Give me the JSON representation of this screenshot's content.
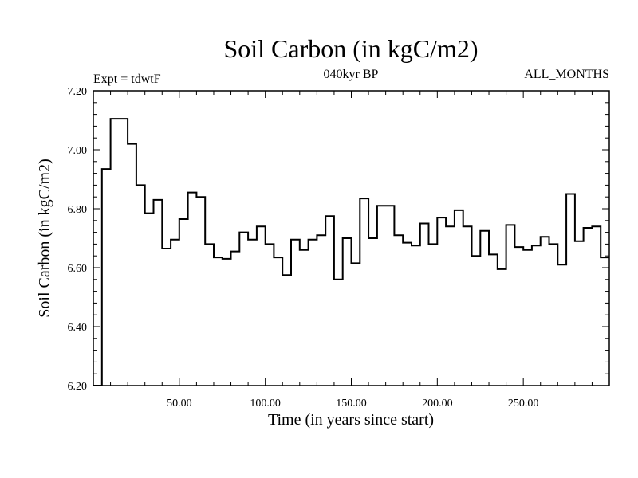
{
  "chart_data": {
    "type": "line",
    "step": true,
    "title": "Soil Carbon (in kgC/m2)",
    "subtitle": "040kyr BP",
    "left_note": "Expt = tdwtF",
    "right_note": "ALL_MONTHS",
    "xlabel": "Time (in years since start)",
    "ylabel": "Soil Carbon (in kgC/m2)",
    "xlim": [
      0,
      300
    ],
    "ylim": [
      6.2,
      7.2
    ],
    "xticks": [
      50,
      100,
      150,
      200,
      250
    ],
    "xtick_labels": [
      "50.00",
      "100.00",
      "150.00",
      "200.00",
      "250.00"
    ],
    "yticks": [
      6.2,
      6.4,
      6.6,
      6.8,
      7.0,
      7.2
    ],
    "ytick_labels": [
      "6.20",
      "6.40",
      "6.60",
      "6.80",
      "7.00",
      "7.20"
    ],
    "x": [
      0,
      5,
      10,
      20,
      25,
      30,
      35,
      40,
      45,
      50,
      55,
      60,
      65,
      70,
      75,
      80,
      85,
      90,
      95,
      100,
      105,
      110,
      115,
      120,
      125,
      130,
      135,
      140,
      145,
      150,
      155,
      160,
      165,
      170,
      175,
      180,
      185,
      190,
      195,
      200,
      205,
      210,
      215,
      220,
      225,
      230,
      235,
      240,
      245,
      250,
      255,
      260,
      265,
      270,
      275,
      280,
      285,
      290,
      295
    ],
    "values": [
      6.2,
      6.935,
      7.105,
      7.02,
      6.88,
      6.785,
      6.83,
      6.665,
      6.695,
      6.765,
      6.855,
      6.84,
      6.68,
      6.635,
      6.63,
      6.655,
      6.72,
      6.695,
      6.74,
      6.68,
      6.635,
      6.575,
      6.695,
      6.66,
      6.695,
      6.71,
      6.775,
      6.56,
      6.7,
      6.615,
      6.835,
      6.7,
      6.81,
      6.81,
      6.71,
      6.685,
      6.675,
      6.75,
      6.68,
      6.77,
      6.74,
      6.795,
      6.74,
      6.64,
      6.725,
      6.645,
      6.595,
      6.745,
      6.67,
      6.66,
      6.675,
      6.705,
      6.68,
      6.61,
      6.85,
      6.69,
      6.735,
      6.74,
      6.635
    ],
    "x_end": 300
  }
}
